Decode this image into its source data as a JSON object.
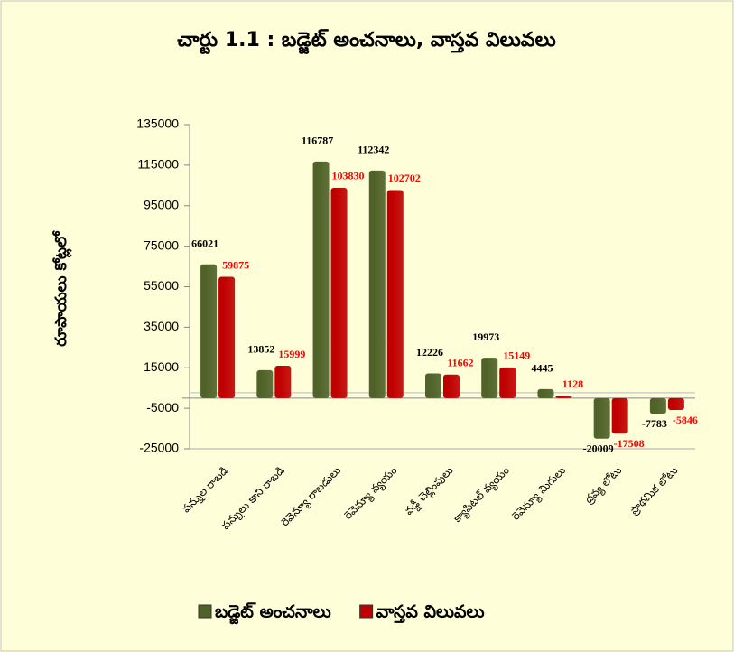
{
  "chart_data": {
    "type": "bar",
    "title": "చార్టు 1.1  :  బడ్జెట్ అంచనాలు, వాస్తవ విలువలు",
    "y_label": "రూపాయలు కోట్లలో",
    "categories": [
      "పన్నుల రాబడి",
      "పన్నులు కాని రాబడి",
      "రెవెన్యూ రాబడులు",
      "రెవెన్యూ వ్యయం",
      "వడ్డీ చెల్లింపులు",
      "క్యాపిటల్ వ్యయం",
      "రెవెన్యూ మిగులు",
      "ద్రవ్య లోటు",
      "ప్రాథమిక లోటు"
    ],
    "series": [
      {
        "name": "బడ్జెట్ అంచనాలు",
        "color": "#4f6228",
        "label_color": "#000000",
        "values": [
          66021,
          13852,
          116787,
          112342,
          12226,
          19973,
          4445,
          -20009,
          -7783
        ]
      },
      {
        "name": "వాస్తవ విలువలు",
        "color": "#c00000",
        "label_color": "#ff0000",
        "values": [
          59875,
          15999,
          103830,
          102702,
          11662,
          15149,
          1128,
          -17508,
          -5846
        ]
      }
    ],
    "ylim": [
      -25000,
      135000
    ],
    "yticks": [
      -25000,
      -5000,
      15000,
      35000,
      55000,
      75000,
      95000,
      115000,
      135000
    ],
    "grid": false
  }
}
